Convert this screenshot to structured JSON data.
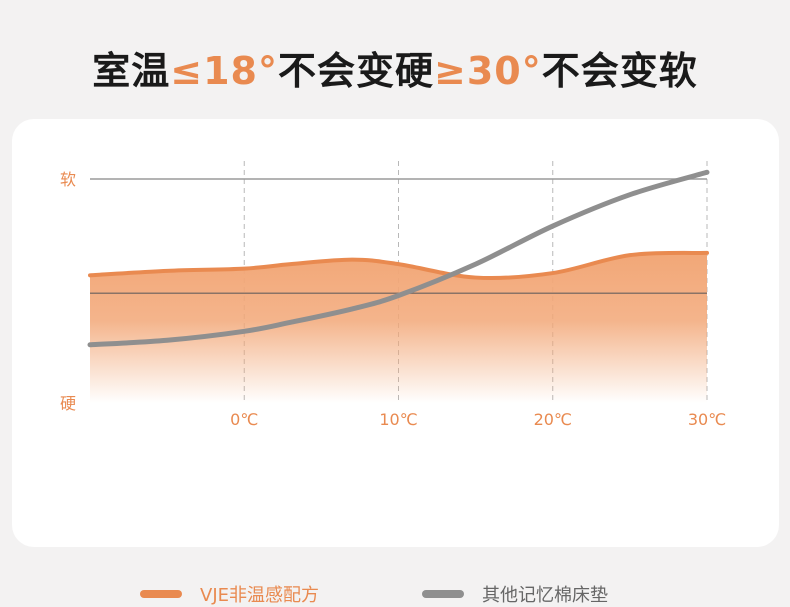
{
  "headline": {
    "part1": "室温",
    "part2": "≤18°",
    "part3": "不会变硬",
    "part4": "≥30°",
    "part5": "不会变软"
  },
  "colors": {
    "accent": "#e98a50",
    "orange_fill": "#f2a777",
    "gray_line": "#8f8f8f",
    "title_text": "#1a1a1a",
    "legend_gray_text": "#666666"
  },
  "chart_data": {
    "type": "area",
    "x": [
      -10,
      -5,
      0,
      3,
      7,
      10,
      15,
      20,
      25,
      30
    ],
    "xlim": [
      -10,
      30
    ],
    "xticks": [
      "0℃",
      "10℃",
      "20℃",
      "30℃"
    ],
    "xtick_values": [
      0,
      10,
      20,
      30
    ],
    "ylabel_top": "软",
    "ylabel_bottom": "硬",
    "ylim": [
      0,
      1
    ],
    "reference_lines": [
      1.0,
      0.49
    ],
    "grid": "vertical dashed",
    "legend_position": "bottom",
    "series": [
      {
        "name": "VJE非温感配方",
        "kind": "area",
        "color": "#e98a50",
        "values": [
          0.57,
          0.59,
          0.6,
          0.62,
          0.64,
          0.62,
          0.56,
          0.58,
          0.66,
          0.67
        ]
      },
      {
        "name": "其他记忆棉床垫",
        "kind": "line",
        "color": "#8f8f8f",
        "values": [
          0.26,
          0.28,
          0.32,
          0.36,
          0.42,
          0.48,
          0.62,
          0.79,
          0.93,
          1.03
        ]
      }
    ]
  }
}
